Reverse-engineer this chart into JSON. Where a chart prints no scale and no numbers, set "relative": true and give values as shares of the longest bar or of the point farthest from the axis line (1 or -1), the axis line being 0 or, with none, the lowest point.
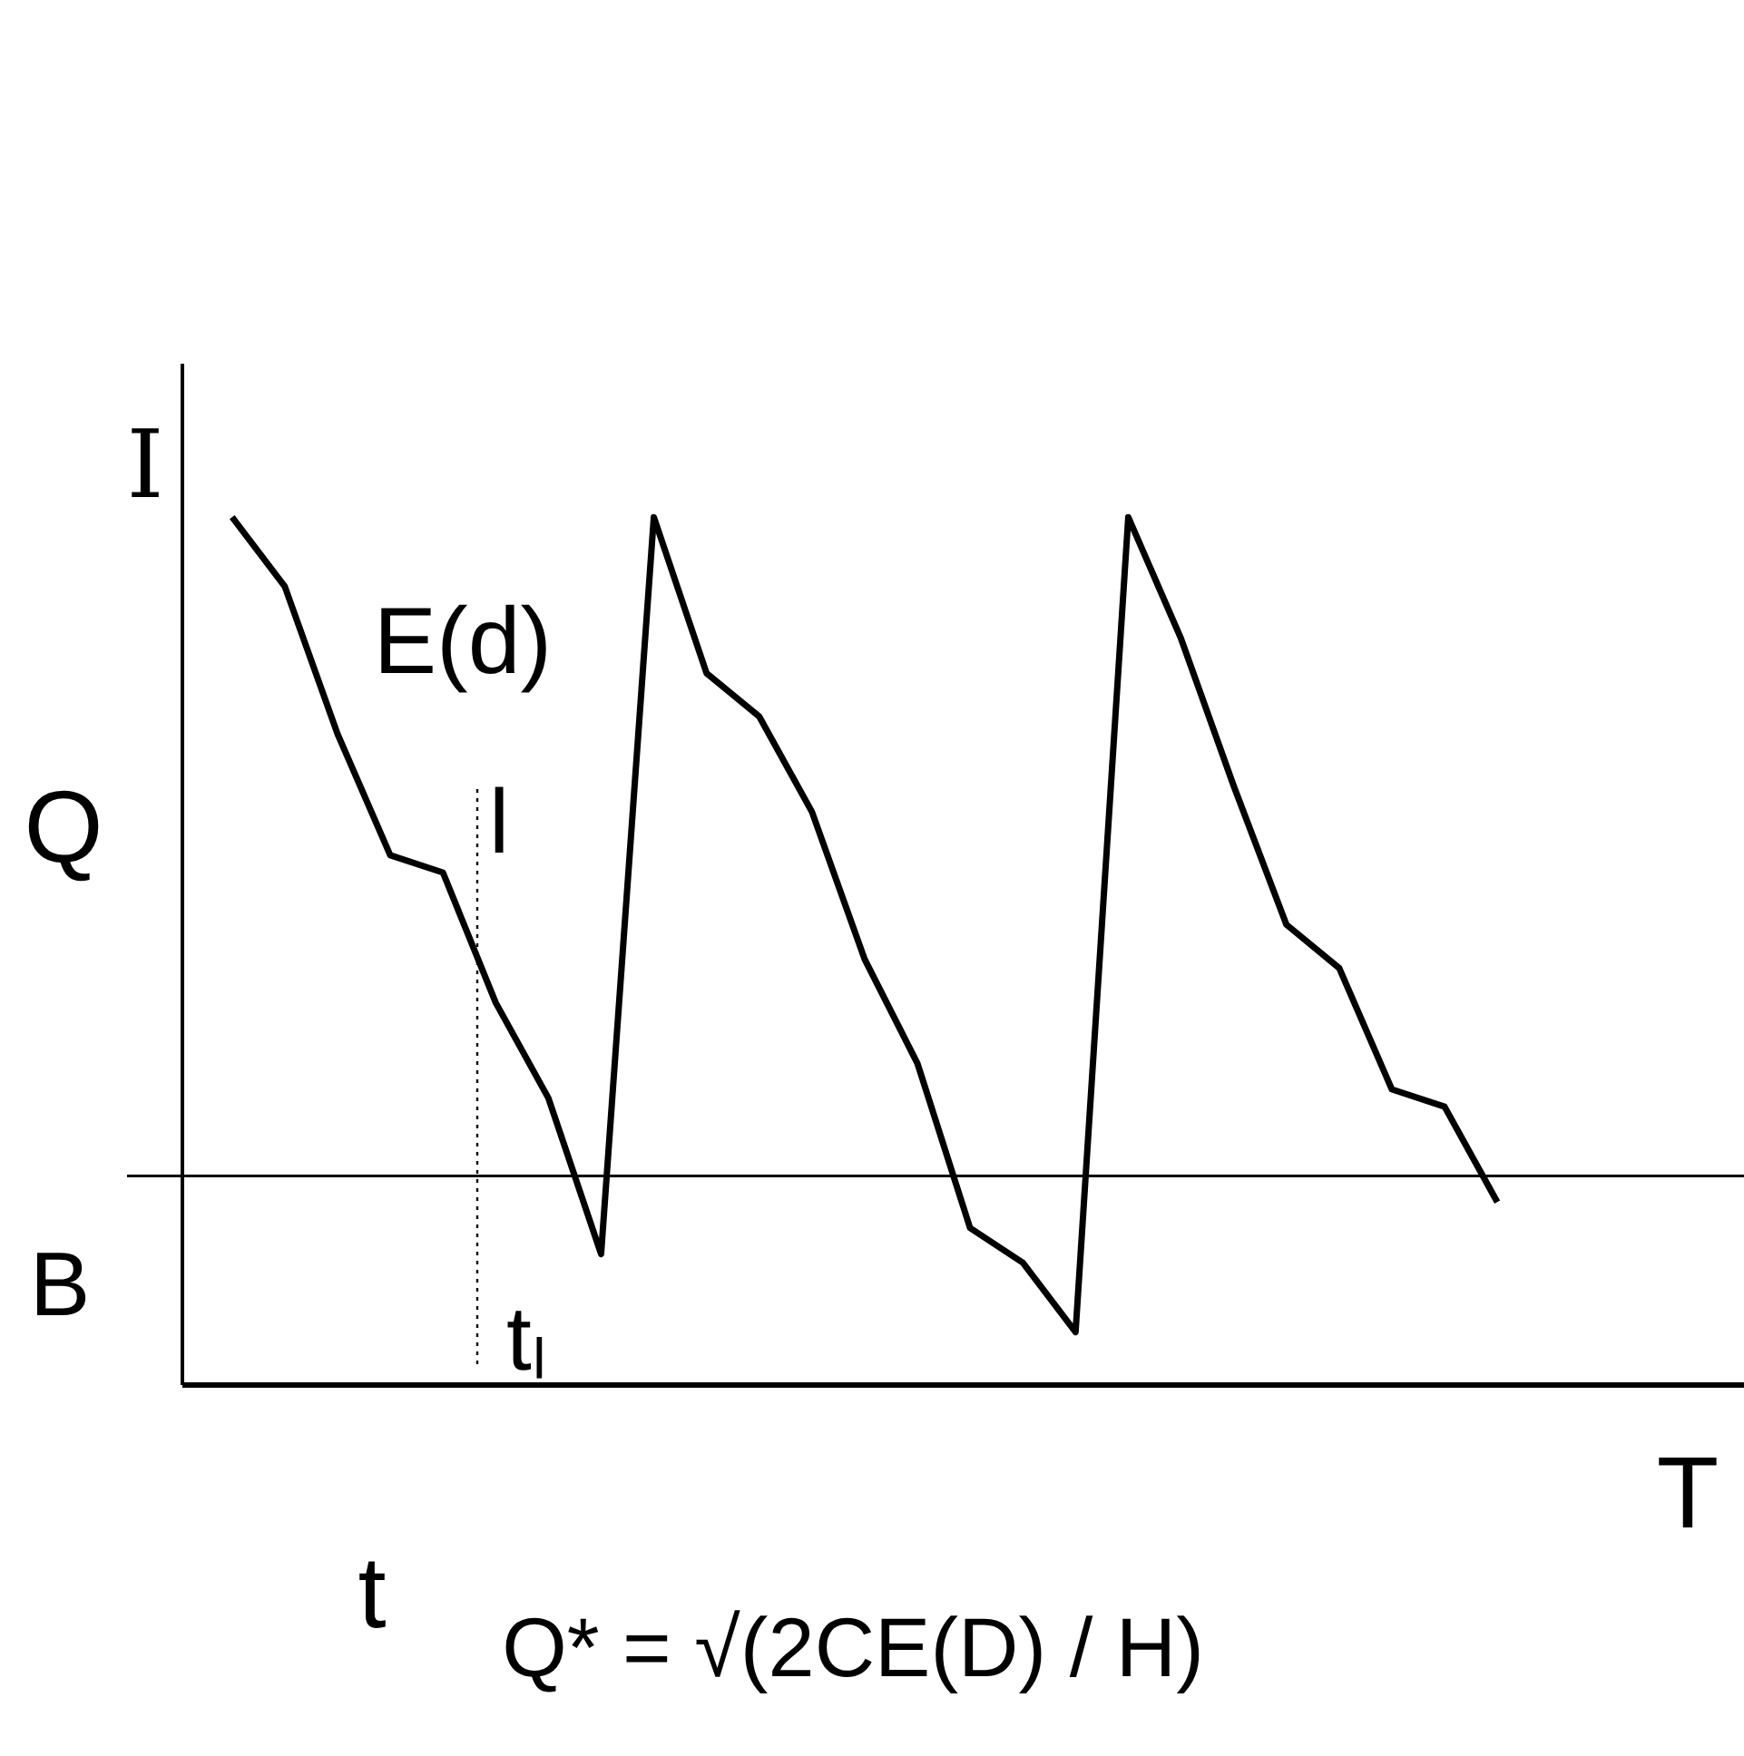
{
  "chart_data": {
    "type": "line",
    "relative": true,
    "xlabel": "T",
    "ylabel": "I",
    "categories": [
      null,
      null,
      null,
      null,
      null,
      null,
      null,
      null,
      null,
      null,
      null,
      null,
      null,
      null,
      null,
      null,
      null,
      null,
      null,
      null,
      null,
      null,
      null,
      null,
      null
    ],
    "series": [
      {
        "color": "#000000",
        "values": [
          1.0,
          0.92,
          0.75,
          0.61,
          0.59,
          0.44,
          0.33,
          0.15,
          1.0,
          0.82,
          0.77,
          0.66,
          0.49,
          0.37,
          0.18,
          0.14,
          0.06,
          1.0,
          0.86,
          0.69,
          0.53,
          0.48,
          0.34,
          0.32,
          0.21
        ]
      }
    ],
    "ref_lines": [
      {
        "axis": "y",
        "value": 0.24,
        "label": null,
        "color": "#000000",
        "line_style": "solid"
      }
    ],
    "annotations": [
      "Q",
      "B",
      "t",
      "tₗ",
      "E(d)",
      "Q* = √(2CE(D) / H)",
      "l"
    ],
    "tick_labels": false,
    "grid": false,
    "marker": "none",
    "line_style": "solid"
  }
}
